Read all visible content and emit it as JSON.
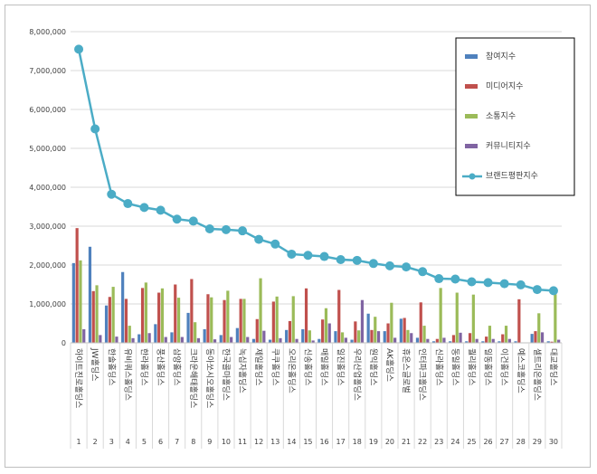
{
  "chart_data": {
    "type": "bar",
    "title": "",
    "xlabel": "",
    "ylabel": "",
    "ylim": [
      0,
      8000000
    ],
    "yticks": [
      "0",
      "1,000,000",
      "2,000,000",
      "3,000,000",
      "4,000,000",
      "5,000,000",
      "6,000,000",
      "7,000,000",
      "8,000,000"
    ],
    "grid": true,
    "legend_position": "top-right",
    "categories": [
      "하이트진로홀딩스",
      "JW홀딩스",
      "한솔홀딩스",
      "유비쿼스홀딩스",
      "한라홀딩스",
      "풍산홀딩스",
      "삼양홀딩스",
      "크라운해태홀딩스",
      "동아쏘시오홀딩스",
      "한국콜마홀딩스",
      "녹십자홀딩스",
      "제일홀딩스",
      "쿠쿠홀딩스",
      "오리온홀딩스",
      "신송홀딩스",
      "매일홀딩스",
      "일진홀딩스",
      "우리산업홀딩스",
      "원익홀딩스",
      "AK홀딩스",
      "휴온스글로벌",
      "인터파크홀딩스",
      "신라홀딩스",
      "동일홀딩스",
      "퀄리홀딩스",
      "일동홀딩스",
      "이건홀딩스",
      "예스코홀딩스",
      "셀트리온홀딩스",
      "대교홀딩스"
    ],
    "ranks": [
      "1",
      "2",
      "3",
      "4",
      "5",
      "6",
      "7",
      "8",
      "9",
      "10",
      "11",
      "12",
      "13",
      "14",
      "15",
      "16",
      "17",
      "18",
      "19",
      "20",
      "21",
      "22",
      "23",
      "24",
      "25",
      "26",
      "27",
      "28",
      "29",
      "30"
    ],
    "series": [
      {
        "name": "참여지수",
        "kind": "bar",
        "color": "#4f81bd",
        "values": [
          2050000,
          2470000,
          960000,
          1820000,
          220000,
          480000,
          270000,
          770000,
          350000,
          200000,
          380000,
          100000,
          80000,
          330000,
          350000,
          100000,
          300000,
          80000,
          750000,
          300000,
          620000,
          130000,
          40000,
          40000,
          40000,
          40000,
          40000,
          40000,
          230000,
          40000
        ]
      },
      {
        "name": "미디어지수",
        "kind": "bar",
        "color": "#c0504d",
        "values": [
          2950000,
          1330000,
          1180000,
          1130000,
          1410000,
          1290000,
          1500000,
          1640000,
          1250000,
          1100000,
          1130000,
          610000,
          1060000,
          560000,
          1400000,
          600000,
          1360000,
          550000,
          330000,
          500000,
          640000,
          1040000,
          100000,
          200000,
          250000,
          160000,
          220000,
          1120000,
          300000,
          30000
        ]
      },
      {
        "name": "소통지수",
        "kind": "bar",
        "color": "#9bbb59",
        "values": [
          2120000,
          1480000,
          1440000,
          440000,
          1550000,
          1400000,
          1160000,
          530000,
          1170000,
          1340000,
          1130000,
          1660000,
          1190000,
          1200000,
          320000,
          890000,
          270000,
          320000,
          670000,
          1030000,
          330000,
          440000,
          1410000,
          1290000,
          1240000,
          440000,
          440000,
          10000,
          760000,
          1250000
        ]
      },
      {
        "name": "커뮤니티지수",
        "kind": "bar",
        "color": "#8064a2",
        "values": [
          350000,
          200000,
          160000,
          120000,
          250000,
          150000,
          150000,
          120000,
          90000,
          150000,
          150000,
          310000,
          120000,
          100000,
          60000,
          500000,
          130000,
          1100000,
          300000,
          130000,
          250000,
          100000,
          130000,
          260000,
          100000,
          100000,
          100000,
          10000,
          270000,
          80000
        ]
      },
      {
        "name": "브랜드평판지수",
        "kind": "line",
        "color": "#4bacc6",
        "values": [
          7550000,
          5500000,
          3820000,
          3580000,
          3480000,
          3410000,
          3180000,
          3130000,
          2930000,
          2910000,
          2880000,
          2660000,
          2540000,
          2280000,
          2250000,
          2220000,
          2140000,
          2120000,
          2040000,
          1980000,
          1950000,
          1830000,
          1650000,
          1640000,
          1570000,
          1550000,
          1520000,
          1490000,
          1370000,
          1340000
        ]
      }
    ]
  }
}
